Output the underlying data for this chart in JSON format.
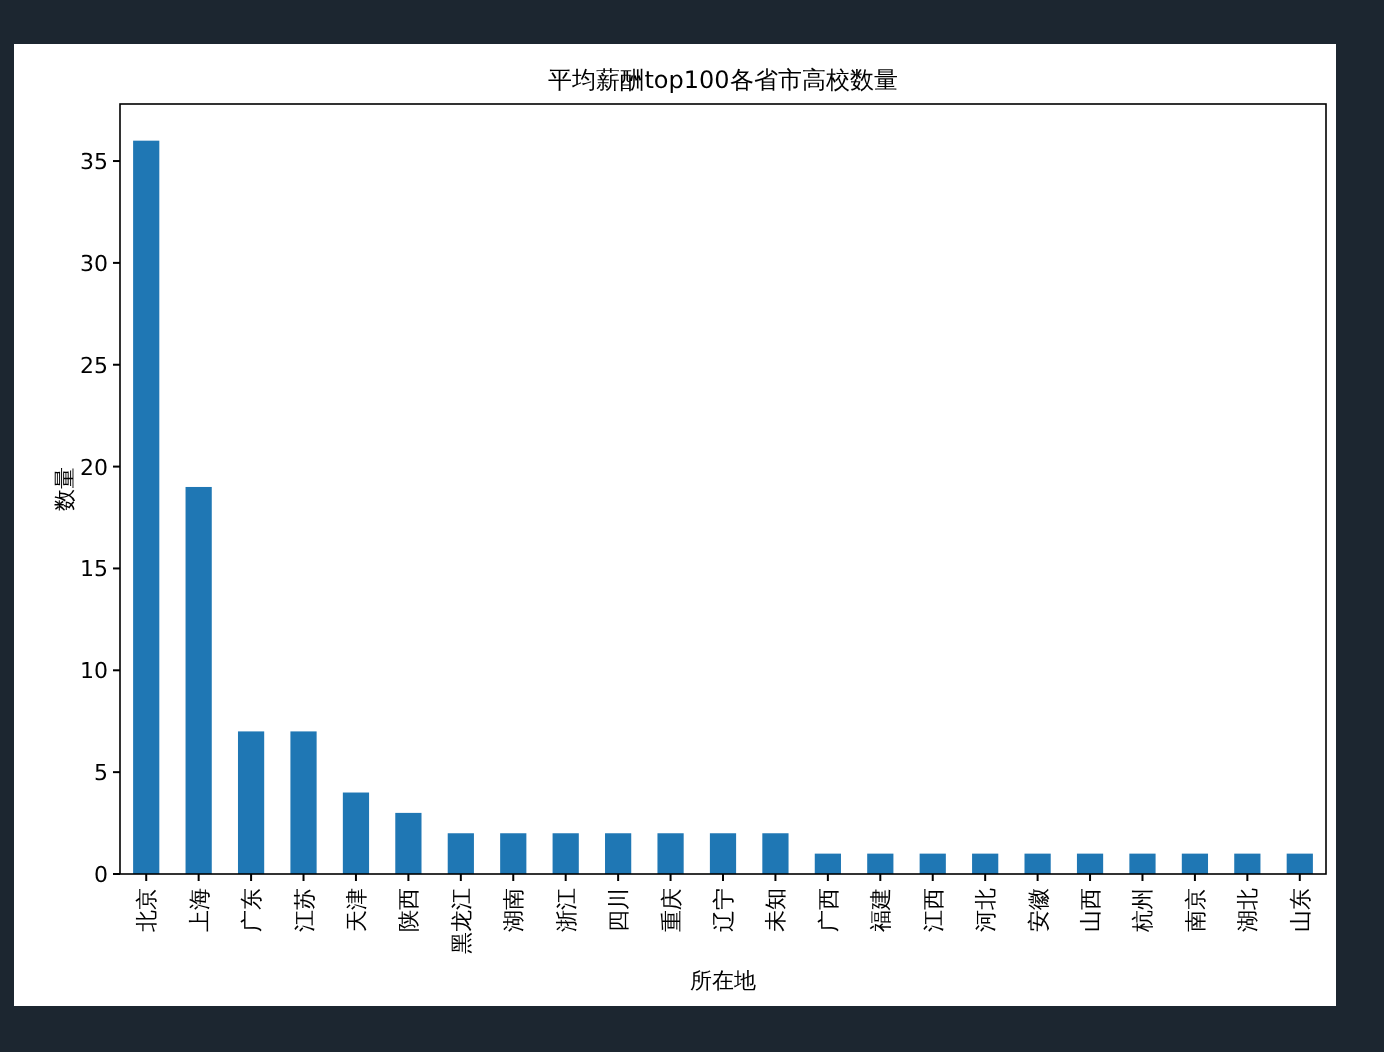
{
  "chart_data": {
    "type": "bar",
    "title": "平均薪酬top100各省市高校数量",
    "xlabel": "所在地",
    "ylabel": "数量",
    "categories": [
      "北京",
      "上海",
      "广东",
      "江苏",
      "天津",
      "陕西",
      "黑龙江",
      "湖南",
      "浙江",
      "四川",
      "重庆",
      "辽宁",
      "未知",
      "广西",
      "福建",
      "江西",
      "河北",
      "安徽",
      "山西",
      "杭州",
      "南京",
      "湖北",
      "山东"
    ],
    "values": [
      36,
      19,
      7,
      7,
      4,
      3,
      2,
      2,
      2,
      2,
      2,
      2,
      2,
      1,
      1,
      1,
      1,
      1,
      1,
      1,
      1,
      1,
      1
    ],
    "color": "#1f77b4",
    "ylim": [
      0,
      37.8
    ],
    "yticks": [
      0,
      5,
      10,
      15,
      20,
      25,
      30,
      35
    ],
    "grid": false
  }
}
